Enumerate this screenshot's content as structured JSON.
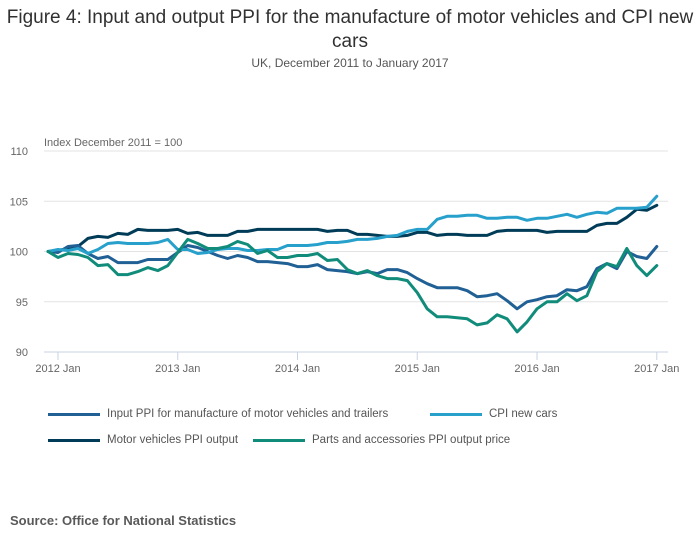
{
  "chart_data": {
    "type": "line",
    "title": "Figure 4: Input and output PPI for the manufacture of motor vehicles and CPI new cars",
    "subtitle": "UK, December 2011 to January 2017",
    "ylabel": "Index December 2011 = 100",
    "xlabel": "",
    "ylim": [
      90,
      110
    ],
    "yticks": [
      "90",
      "95",
      "100",
      "105",
      "110"
    ],
    "ytick_values": [
      90,
      95,
      100,
      105,
      110
    ],
    "xticks": [
      "2012 Jan",
      "2013 Jan",
      "2014 Jan",
      "2015 Jan",
      "2016 Jan",
      "2017 Jan"
    ],
    "xtick_month_index": [
      1,
      13,
      25,
      37,
      49,
      61
    ],
    "x_start": "2011 Dec",
    "x_end": "2017 Jan",
    "grid": true,
    "legend_position": "bottom",
    "series": [
      {
        "name": "Input PPI for manufacture of motor vehicles and trailers",
        "color": "#206095",
        "values": [
          100.0,
          99.9,
          100.5,
          100.6,
          99.8,
          99.3,
          99.5,
          98.9,
          98.9,
          98.9,
          99.2,
          99.2,
          99.2,
          99.9,
          100.6,
          100.4,
          100.0,
          99.6,
          99.3,
          99.6,
          99.4,
          99.0,
          99.0,
          98.9,
          98.8,
          98.5,
          98.5,
          98.7,
          98.2,
          98.1,
          98.0,
          97.8,
          98.0,
          97.8,
          98.2,
          98.2,
          97.9,
          97.3,
          96.8,
          96.4,
          96.4,
          96.4,
          96.1,
          95.5,
          95.6,
          95.8,
          95.1,
          94.3,
          95.0,
          95.2,
          95.5,
          95.6,
          96.2,
          96.1,
          96.5,
          98.3,
          98.8,
          98.3,
          100.0,
          99.5,
          99.3,
          100.5
        ]
      },
      {
        "name": "CPI new cars",
        "color": "#27a0cc",
        "values": [
          100.0,
          100.2,
          100.1,
          100.3,
          99.8,
          100.2,
          100.8,
          100.9,
          100.8,
          100.8,
          100.8,
          100.9,
          101.2,
          100.2,
          100.2,
          99.8,
          99.9,
          100.2,
          100.3,
          100.3,
          100.1,
          100.1,
          100.2,
          100.2,
          100.6,
          100.6,
          100.6,
          100.7,
          100.9,
          100.9,
          101.0,
          101.2,
          101.2,
          101.3,
          101.5,
          101.6,
          102.0,
          102.2,
          102.2,
          103.2,
          103.5,
          103.5,
          103.6,
          103.6,
          103.3,
          103.3,
          103.4,
          103.4,
          103.1,
          103.3,
          103.3,
          103.5,
          103.7,
          103.4,
          103.7,
          103.9,
          103.8,
          104.3,
          104.3,
          104.3,
          104.4,
          105.5
        ]
      },
      {
        "name": "Motor vehicles PPI output",
        "color": "#003c57",
        "values": [
          100.0,
          100.1,
          100.3,
          100.5,
          101.3,
          101.5,
          101.4,
          101.8,
          101.7,
          102.2,
          102.1,
          102.1,
          102.1,
          102.2,
          101.8,
          101.9,
          101.6,
          101.6,
          101.6,
          102.0,
          102.0,
          102.2,
          102.2,
          102.2,
          102.2,
          102.2,
          102.2,
          102.2,
          102.0,
          102.1,
          102.1,
          101.7,
          101.7,
          101.6,
          101.5,
          101.5,
          101.6,
          101.9,
          101.9,
          101.6,
          101.7,
          101.7,
          101.6,
          101.6,
          101.6,
          102.0,
          102.1,
          102.1,
          102.1,
          102.1,
          101.9,
          102.0,
          102.0,
          102.0,
          102.0,
          102.6,
          102.8,
          102.8,
          103.4,
          104.2,
          104.1,
          104.6
        ]
      },
      {
        "name": "Parts and accessories PPI output price",
        "color": "#118c7b",
        "values": [
          100.0,
          99.4,
          99.8,
          99.7,
          99.4,
          98.6,
          98.7,
          97.7,
          97.7,
          98.0,
          98.4,
          98.1,
          98.6,
          99.9,
          101.2,
          100.8,
          100.3,
          100.3,
          100.5,
          101.0,
          100.7,
          99.8,
          100.1,
          99.4,
          99.4,
          99.6,
          99.6,
          99.8,
          99.1,
          99.2,
          98.2,
          97.8,
          98.1,
          97.6,
          97.3,
          97.3,
          97.1,
          95.9,
          94.3,
          93.5,
          93.5,
          93.4,
          93.3,
          92.7,
          92.9,
          93.7,
          93.3,
          92.0,
          93.0,
          94.3,
          95.0,
          95.0,
          95.8,
          95.1,
          95.6,
          98.0,
          98.8,
          98.5,
          100.3,
          98.6,
          97.6,
          98.6
        ]
      }
    ]
  },
  "source": "Source: Office for National Statistics"
}
